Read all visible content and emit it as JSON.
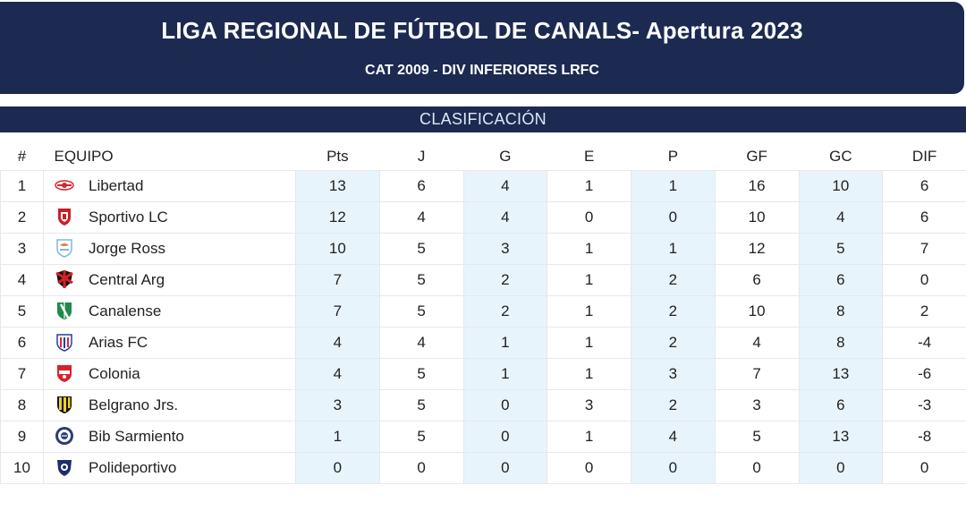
{
  "header": {
    "title": "LIGA REGIONAL DE FÚTBOL DE CANALS- Apertura 2023",
    "subtitle": "CAT 2009 - DIV INFERIORES LRFC"
  },
  "section": {
    "title": "CLASIFICACIÓN"
  },
  "table": {
    "columns": [
      "#",
      "EQUIPO",
      "Pts",
      "J",
      "G",
      "E",
      "P",
      "GF",
      "GC",
      "DIF"
    ],
    "rows": [
      {
        "pos": "1",
        "team": "Libertad",
        "crest": "libertad-crest-icon",
        "pts": "13",
        "j": "6",
        "g": "4",
        "e": "1",
        "p": "1",
        "gf": "16",
        "gc": "10",
        "dif": "6"
      },
      {
        "pos": "2",
        "team": "Sportivo LC",
        "crest": "sportivo-lc-crest-icon",
        "pts": "12",
        "j": "4",
        "g": "4",
        "e": "0",
        "p": "0",
        "gf": "10",
        "gc": "4",
        "dif": "6"
      },
      {
        "pos": "3",
        "team": "Jorge Ross",
        "crest": "jorge-ross-crest-icon",
        "pts": "10",
        "j": "5",
        "g": "3",
        "e": "1",
        "p": "1",
        "gf": "12",
        "gc": "5",
        "dif": "7"
      },
      {
        "pos": "4",
        "team": "Central Arg",
        "crest": "central-arg-crest-icon",
        "pts": "7",
        "j": "5",
        "g": "2",
        "e": "1",
        "p": "2",
        "gf": "6",
        "gc": "6",
        "dif": "0"
      },
      {
        "pos": "5",
        "team": "Canalense",
        "crest": "canalense-crest-icon",
        "pts": "7",
        "j": "5",
        "g": "2",
        "e": "1",
        "p": "2",
        "gf": "10",
        "gc": "8",
        "dif": "2"
      },
      {
        "pos": "6",
        "team": "Arias FC",
        "crest": "arias-fc-crest-icon",
        "pts": "4",
        "j": "4",
        "g": "1",
        "e": "1",
        "p": "2",
        "gf": "4",
        "gc": "8",
        "dif": "-4"
      },
      {
        "pos": "7",
        "team": "Colonia",
        "crest": "colonia-crest-icon",
        "pts": "4",
        "j": "5",
        "g": "1",
        "e": "1",
        "p": "3",
        "gf": "7",
        "gc": "13",
        "dif": "-6"
      },
      {
        "pos": "8",
        "team": "Belgrano Jrs.",
        "crest": "belgrano-jrs-crest-icon",
        "pts": "3",
        "j": "5",
        "g": "0",
        "e": "3",
        "p": "2",
        "gf": "3",
        "gc": "6",
        "dif": "-3"
      },
      {
        "pos": "9",
        "team": "Bib Sarmiento",
        "crest": "bib-sarmiento-crest-icon",
        "pts": "1",
        "j": "5",
        "g": "0",
        "e": "1",
        "p": "4",
        "gf": "5",
        "gc": "13",
        "dif": "-8"
      },
      {
        "pos": "10",
        "team": "Polideportivo",
        "crest": "polideportivo-crest-icon",
        "pts": "0",
        "j": "0",
        "g": "0",
        "e": "0",
        "p": "0",
        "gf": "0",
        "gc": "0",
        "dif": "0"
      }
    ]
  },
  "colors": {
    "header_bg": "#1c2a52",
    "highlight_col": "#e8f4fb",
    "border": "#e6e8ec"
  }
}
